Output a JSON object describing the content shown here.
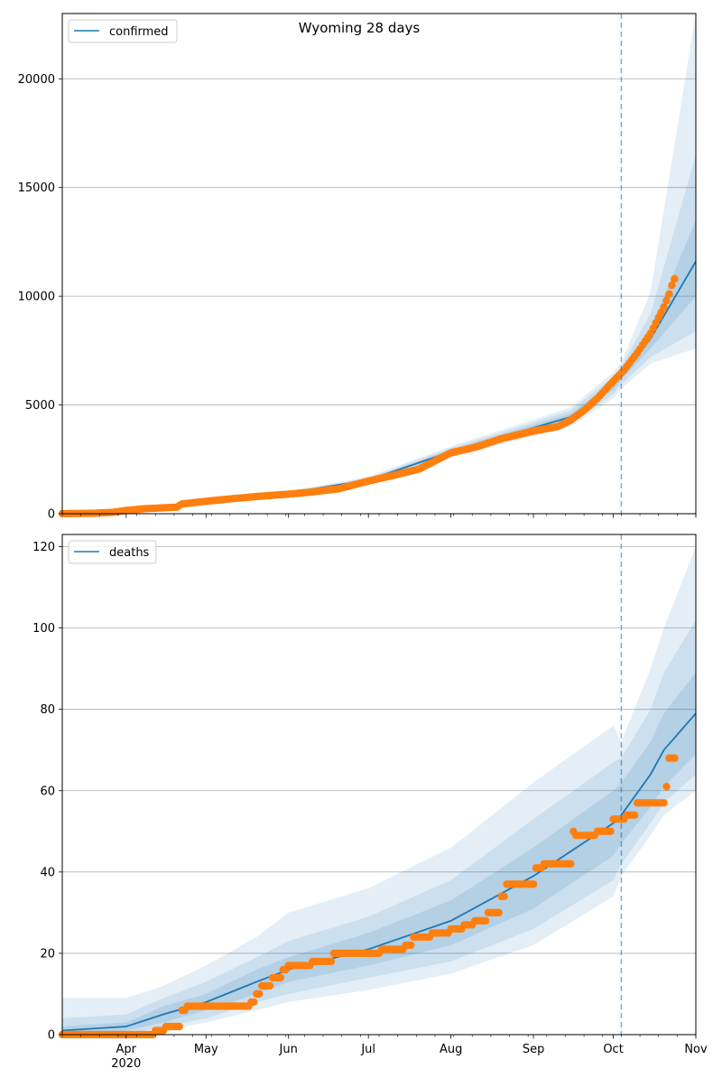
{
  "title": "Wyoming 28 days",
  "colors": {
    "model": "#1f77b4",
    "observed": "#ff7f0e",
    "grid": "#b0b0b0",
    "band": "#1f77b4"
  },
  "chart_data": [
    {
      "type": "line",
      "panel": "top",
      "title": "Wyoming 28 days",
      "legend": {
        "label": "confirmed",
        "placement": "top-left"
      },
      "xlabel": "",
      "ylabel": "",
      "x_range": [
        "2020-03-08",
        "2020-11-01"
      ],
      "ylim": [
        0,
        23000
      ],
      "yticks": [
        0,
        5000,
        10000,
        15000,
        20000
      ],
      "grid": "horizontal",
      "forecast_start": "2020-10-04",
      "series": [
        {
          "name": "confirmed",
          "kind": "model",
          "x": [
            "2020-03-08",
            "2020-04-01",
            "2020-05-01",
            "2020-06-01",
            "2020-07-01",
            "2020-08-01",
            "2020-09-01",
            "2020-09-15",
            "2020-10-01",
            "2020-10-04",
            "2020-10-15",
            "2020-11-01"
          ],
          "y": [
            0,
            100,
            600,
            950,
            1550,
            2850,
            3950,
            4450,
            5900,
            6350,
            8050,
            11600
          ],
          "band_50": {
            "lower": [
              0,
              90,
              570,
              920,
              1500,
              2760,
              3820,
              4300,
              5700,
              6150,
              7600,
              10000
            ],
            "upper": [
              0,
              110,
              630,
              980,
              1600,
              2940,
              4080,
              4600,
              6100,
              6550,
              8550,
              13500
            ]
          },
          "band_80": {
            "lower": [
              0,
              80,
              540,
              890,
              1450,
              2680,
              3700,
              4150,
              5500,
              5950,
              7200,
              8400
            ],
            "upper": [
              0,
              120,
              660,
              1010,
              1650,
              3020,
              4200,
              4750,
              6300,
              6750,
              9200,
              16500
            ]
          },
          "band_95": {
            "lower": [
              0,
              70,
              510,
              860,
              1400,
              2600,
              3560,
              4000,
              5300,
              5750,
              6900,
              7600
            ],
            "upper": [
              0,
              130,
              690,
              1040,
              1700,
              3100,
              4320,
              4900,
              6500,
              6950,
              10200,
              23000
            ]
          }
        },
        {
          "name": "observed",
          "kind": "points",
          "x": [
            "2020-03-08",
            "2020-03-20",
            "2020-03-27",
            "2020-04-01",
            "2020-04-08",
            "2020-04-15",
            "2020-04-20",
            "2020-04-22",
            "2020-05-01",
            "2020-05-10",
            "2020-05-20",
            "2020-06-01",
            "2020-06-10",
            "2020-06-20",
            "2020-07-01",
            "2020-07-10",
            "2020-07-20",
            "2020-08-01",
            "2020-08-10",
            "2020-08-20",
            "2020-09-01",
            "2020-09-10",
            "2020-09-15",
            "2020-09-20",
            "2020-09-25",
            "2020-10-01",
            "2020-10-05",
            "2020-10-10",
            "2020-10-15",
            "2020-10-20",
            "2020-10-22",
            "2020-10-23",
            "2020-10-24"
          ],
          "y": [
            0,
            20,
            60,
            150,
            230,
            270,
            300,
            450,
            570,
            680,
            790,
            900,
            1000,
            1150,
            1500,
            1750,
            2050,
            2800,
            3050,
            3450,
            3800,
            4000,
            4300,
            4750,
            5300,
            6100,
            6600,
            7400,
            8300,
            9500,
            10100,
            10500,
            10800
          ]
        }
      ]
    },
    {
      "type": "line",
      "panel": "bottom",
      "legend": {
        "label": "deaths",
        "placement": "top-left"
      },
      "xlabel": "",
      "ylabel": "",
      "x_range": [
        "2020-03-08",
        "2020-11-01"
      ],
      "ylim": [
        0,
        123
      ],
      "yticks": [
        0,
        20,
        40,
        60,
        80,
        100,
        120
      ],
      "xticks": [
        "Apr",
        "May",
        "Jun",
        "Jul",
        "Aug",
        "Sep",
        "Oct",
        "Nov"
      ],
      "xtick_dates": [
        "2020-04-01",
        "2020-05-01",
        "2020-06-01",
        "2020-07-01",
        "2020-08-01",
        "2020-09-01",
        "2020-10-01",
        "2020-11-01"
      ],
      "year_label": "2020",
      "grid": "horizontal",
      "forecast_start": "2020-10-04",
      "series": [
        {
          "name": "deaths",
          "kind": "model",
          "x": [
            "2020-03-08",
            "2020-04-01",
            "2020-04-15",
            "2020-05-01",
            "2020-05-20",
            "2020-06-01",
            "2020-07-01",
            "2020-08-01",
            "2020-09-01",
            "2020-10-01",
            "2020-10-04",
            "2020-10-15",
            "2020-10-20",
            "2020-11-01"
          ],
          "y": [
            1,
            2,
            5,
            8,
            13,
            16,
            21,
            28,
            39,
            52,
            54,
            64,
            70,
            79
          ],
          "band_50": {
            "lower": [
              0,
              1,
              3,
              6,
              10,
              13,
              17,
              22,
              31,
              44,
              47,
              56,
              61,
              69
            ],
            "upper": [
              2,
              3,
              7,
              10,
              16,
              19,
              25,
              33,
              46,
              60,
              62,
              72,
              79,
              89
            ]
          },
          "band_80": {
            "lower": [
              0,
              0,
              2,
              4,
              8,
              10,
              14,
              18,
              26,
              38,
              42,
              52,
              57,
              64
            ],
            "upper": [
              4,
              5,
              9,
              13,
              19,
              23,
              29,
              38,
              53,
              67,
              68,
              80,
              89,
              102
            ]
          },
          "band_95": {
            "lower": [
              0,
              0,
              1,
              3,
              6,
              8,
              11,
              15,
              22,
              34,
              39,
              49,
              54,
              60
            ],
            "upper": [
              9,
              9,
              12,
              17,
              24,
              30,
              36,
              46,
              62,
              76,
              72,
              90,
              100,
              120
            ]
          }
        },
        {
          "name": "observed",
          "kind": "points",
          "x": [
            "2020-03-08",
            "2020-04-12",
            "2020-04-16",
            "2020-04-22",
            "2020-04-24",
            "2020-05-01",
            "2020-05-15",
            "2020-05-18",
            "2020-05-20",
            "2020-05-22",
            "2020-05-26",
            "2020-05-30",
            "2020-06-01",
            "2020-06-10",
            "2020-06-15",
            "2020-06-18",
            "2020-07-01",
            "2020-07-06",
            "2020-07-12",
            "2020-07-15",
            "2020-07-18",
            "2020-07-25",
            "2020-08-01",
            "2020-08-06",
            "2020-08-10",
            "2020-08-15",
            "2020-08-20",
            "2020-08-22",
            "2020-09-01",
            "2020-09-02",
            "2020-09-05",
            "2020-09-10",
            "2020-09-15",
            "2020-09-16",
            "2020-09-17",
            "2020-09-25",
            "2020-10-01",
            "2020-10-06",
            "2020-10-10",
            "2020-10-15",
            "2020-10-20",
            "2020-10-21",
            "2020-10-22",
            "2020-10-24"
          ],
          "y": [
            0,
            1,
            2,
            6,
            7,
            7,
            7,
            8,
            10,
            12,
            14,
            16,
            17,
            18,
            18,
            20,
            20,
            21,
            21,
            22,
            24,
            25,
            26,
            27,
            28,
            30,
            34,
            37,
            37,
            41,
            42,
            42,
            42,
            50,
            49,
            50,
            53,
            54,
            57,
            57,
            57,
            61,
            68,
            68
          ]
        }
      ]
    }
  ]
}
